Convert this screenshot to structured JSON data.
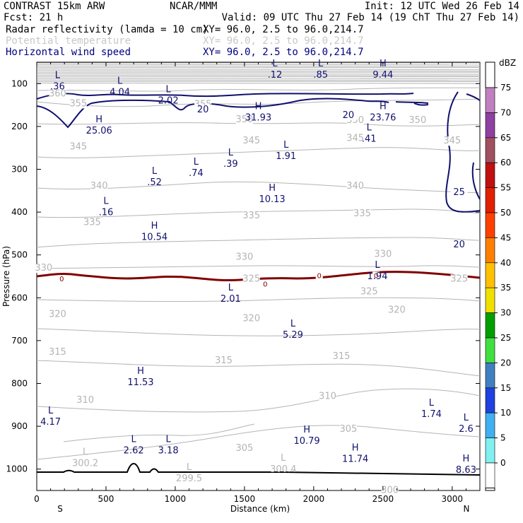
{
  "header": {
    "left_line1": "CONTRAST 15km ARW",
    "left_line2": "Fcst:    21 h",
    "center_line1": "NCAR/MMM",
    "init": "Init: 12 UTC Wed 26 Feb 14",
    "valid": "Valid: 09 UTC Thu 27 Feb 14 (19 ChT Thu 27 Feb 14)",
    "fields": [
      {
        "name": "Radar reflectivity (lamda = 10 cm)",
        "xy": "XY=  96.0,  2.5 to  96.0,214.7",
        "color": "#000000"
      },
      {
        "name": "Potential temperature",
        "xy": "XY=  96.0,  2.5 to  96.0,214.7",
        "color": "#c8c8c8"
      },
      {
        "name": "Horizontal wind speed",
        "xy": "XY=  96.0,  2.5 to  96.0,214.7",
        "color": "#000080"
      }
    ]
  },
  "chart_data": {
    "type": "contour-cross-section",
    "xlabel": "Distance (km)",
    "ylabel": "Pressure (hPa)",
    "x_range": [
      0,
      3200
    ],
    "y_range": [
      1050,
      50
    ],
    "x_ticks": [
      0,
      500,
      1000,
      1500,
      2000,
      2500,
      3000
    ],
    "y_ticks": [
      100,
      200,
      300,
      400,
      500,
      600,
      700,
      800,
      900,
      1000
    ],
    "x_endpoint_labels": {
      "left": "S",
      "right": "N"
    },
    "colorbar": {
      "unit": "dBZ",
      "ticks": [
        "75",
        "70",
        "65",
        "60",
        "55",
        "50",
        "45",
        "40",
        "35",
        "30",
        "25",
        "20",
        "15",
        "10",
        "5",
        "0"
      ],
      "colors": [
        "#c080c0",
        "#9040a0",
        "#a05060",
        "#c01010",
        "#e02000",
        "#ff4000",
        "#ff8000",
        "#ffc000",
        "#f0e000",
        "#00a000",
        "#40e040",
        "#4080c0",
        "#2040e0",
        "#40b0f0",
        "#80f0f0",
        "#ffffff"
      ]
    },
    "theta_contours": [
      {
        "label": "360",
        "x": 150,
        "p": 130
      },
      {
        "label": "355",
        "x": 300,
        "p": 153
      },
      {
        "label": "355",
        "x": 1200,
        "p": 155
      },
      {
        "label": "350",
        "x": 1500,
        "p": 190
      },
      {
        "label": "350",
        "x": 2300,
        "p": 192
      },
      {
        "label": "350",
        "x": 2750,
        "p": 192
      },
      {
        "label": "345",
        "x": 300,
        "p": 254
      },
      {
        "label": "345",
        "x": 1550,
        "p": 240
      },
      {
        "label": "345",
        "x": 2300,
        "p": 234
      },
      {
        "label": "345",
        "x": 3000,
        "p": 240
      },
      {
        "label": "340",
        "x": 450,
        "p": 345
      },
      {
        "label": "340",
        "x": 2300,
        "p": 345
      },
      {
        "label": "335",
        "x": 400,
        "p": 430
      },
      {
        "label": "335",
        "x": 1550,
        "p": 415
      },
      {
        "label": "335",
        "x": 2350,
        "p": 410
      },
      {
        "label": "330",
        "x": 50,
        "p": 537
      },
      {
        "label": "330",
        "x": 1500,
        "p": 511
      },
      {
        "label": "330",
        "x": 2500,
        "p": 505
      },
      {
        "label": "325",
        "x": 1550,
        "p": 562
      },
      {
        "label": "325",
        "x": 2400,
        "p": 592
      },
      {
        "label": "325",
        "x": 3050,
        "p": 562
      },
      {
        "label": "320",
        "x": 150,
        "p": 645
      },
      {
        "label": "320",
        "x": 1550,
        "p": 655
      },
      {
        "label": "320",
        "x": 2600,
        "p": 635
      },
      {
        "label": "315",
        "x": 150,
        "p": 733
      },
      {
        "label": "315",
        "x": 1350,
        "p": 753
      },
      {
        "label": "315",
        "x": 2200,
        "p": 743
      },
      {
        "label": "310",
        "x": 350,
        "p": 845
      },
      {
        "label": "310",
        "x": 2100,
        "p": 836
      },
      {
        "label": "305",
        "x": 1500,
        "p": 958
      },
      {
        "label": "305",
        "x": 2250,
        "p": 913
      },
      {
        "label": "300",
        "x": 2550,
        "p": 1056
      }
    ],
    "wind_contours": [
      {
        "label": "20",
        "x": 1200,
        "p": 167
      },
      {
        "label": "20",
        "x": 2250,
        "p": 180
      },
      {
        "label": "25",
        "x": 3050,
        "p": 360
      },
      {
        "label": "20",
        "x": 3050,
        "p": 482
      }
    ],
    "reflectivity_contours": [
      {
        "label": "0",
        "x": 180,
        "p": 557
      },
      {
        "label": "0",
        "x": 1650,
        "p": 569
      },
      {
        "label": "0",
        "x": 2040,
        "p": 549
      },
      {
        "label": "0",
        "x": 2450,
        "p": 549
      }
    ],
    "extrema_wind": [
      {
        "kind": "L",
        "value": ".36",
        "x": 150,
        "p": 87
      },
      {
        "kind": "L",
        "value": "4.04",
        "x": 600,
        "p": 100
      },
      {
        "kind": "L",
        "value": "2.02",
        "x": 950,
        "p": 120
      },
      {
        "kind": "L",
        "value": ".12",
        "x": 1720,
        "p": 60
      },
      {
        "kind": "L",
        "value": ".85",
        "x": 2050,
        "p": 60
      },
      {
        "kind": "H",
        "value": "9.44",
        "x": 2500,
        "p": 60
      },
      {
        "kind": "H",
        "value": "31.93",
        "x": 1600,
        "p": 160
      },
      {
        "kind": "H",
        "value": "23.76",
        "x": 2500,
        "p": 160
      },
      {
        "kind": "H",
        "value": "25.06",
        "x": 450,
        "p": 190
      },
      {
        "kind": "L",
        "value": ".41",
        "x": 2400,
        "p": 209
      },
      {
        "kind": "L",
        "value": "1.91",
        "x": 1800,
        "p": 250
      },
      {
        "kind": "L",
        "value": ".39",
        "x": 1400,
        "p": 268
      },
      {
        "kind": "L",
        "value": ".74",
        "x": 1150,
        "p": 289
      },
      {
        "kind": "L",
        "value": ".52",
        "x": 850,
        "p": 311
      },
      {
        "kind": "H",
        "value": "10.13",
        "x": 1700,
        "p": 350
      },
      {
        "kind": "L",
        "value": ".16",
        "x": 500,
        "p": 381
      },
      {
        "kind": "H",
        "value": "10.54",
        "x": 850,
        "p": 439
      },
      {
        "kind": "L",
        "value": "1.94",
        "x": 2460,
        "p": 530
      },
      {
        "kind": "L",
        "value": "2.01",
        "x": 1400,
        "p": 583
      },
      {
        "kind": "L",
        "value": "5.29",
        "x": 1850,
        "p": 667
      },
      {
        "kind": "H",
        "value": "11.53",
        "x": 750,
        "p": 778
      },
      {
        "kind": "L",
        "value": "1.74",
        "x": 2850,
        "p": 852
      },
      {
        "kind": "L",
        "value": "4.17",
        "x": 100,
        "p": 870
      },
      {
        "kind": "L",
        "value": "2.6",
        "x": 3100,
        "p": 887
      },
      {
        "kind": "H",
        "value": "10.79",
        "x": 1950,
        "p": 915
      },
      {
        "kind": "L",
        "value": "2.62",
        "x": 700,
        "p": 937
      },
      {
        "kind": "L",
        "value": "3.18",
        "x": 950,
        "p": 937
      },
      {
        "kind": "H",
        "value": "11.74",
        "x": 2300,
        "p": 957
      },
      {
        "kind": "H",
        "value": "8.63",
        "x": 3100,
        "p": 982
      }
    ],
    "extrema_theta": [
      {
        "kind": "L",
        "value": "300.2",
        "x": 350,
        "p": 967
      },
      {
        "kind": "L",
        "value": "300.4",
        "x": 1780,
        "p": 981
      },
      {
        "kind": "L",
        "value": "299.5",
        "x": 1100,
        "p": 1002
      }
    ]
  }
}
